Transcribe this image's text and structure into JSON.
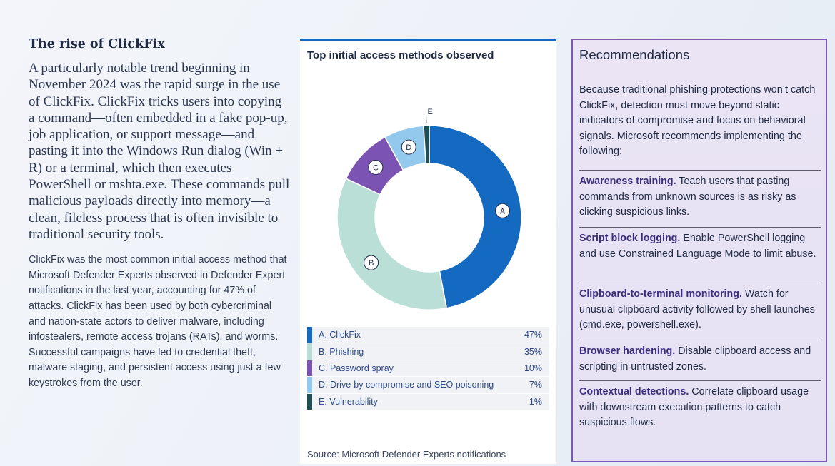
{
  "left": {
    "title": "The rise of ClickFix",
    "lead": "A particularly notable trend beginning in November 2024 was the rapid surge in the use of ClickFix. ClickFix tricks users into copying a command—often embedded in a fake pop-up, job application, or support message—and pasting it into the Windows Run dialog (Win + R) or a terminal, which then executes PowerShell or mshta.exe. These commands pull malicious payloads directly into memory—a clean, fileless process that is often invisible to traditional security tools.",
    "body": "ClickFix was the most common initial access method that Microsoft Defender Experts observed in Defender Expert notifications in the last year, accounting for 47% of attacks. ClickFix has been used by both cybercriminal and nation-state actors to deliver malware, including infostealers, remote access trojans (RATs), and worms. Successful campaigns have led to credential theft, malware staging, and persistent access using just a few keystrokes from the user."
  },
  "chart_data": {
    "type": "pie",
    "title": "Top initial access methods observed",
    "categories": [
      "A",
      "B",
      "C",
      "D",
      "E"
    ],
    "series_labels": [
      "A. ClickFix",
      "B. Phishing",
      "C. Password spray",
      "D. Drive-by compromise and SEO poisoning",
      "E. Vulnerability"
    ],
    "values": [
      47,
      35,
      10,
      7,
      1
    ],
    "value_labels": [
      "47%",
      "35%",
      "10%",
      "7%",
      "1%"
    ],
    "colors": [
      "#1469c0",
      "#b9dfd6",
      "#7b53b2",
      "#93c9ec",
      "#1e4f55"
    ],
    "donut": true,
    "source": "Source: Microsoft Defender Experts notifications"
  },
  "recommendations": {
    "title": "Recommendations",
    "intro": "Because traditional phishing protections won’t catch ClickFix, detection must move beyond static indicators of compromise and focus on behavioral signals. Microsoft recommends implementing the following:",
    "items": [
      {
        "heading": "Awareness training.",
        "text": " Teach users that pasting commands from unknown sources is as risky as clicking suspicious links."
      },
      {
        "heading": "Script block logging.",
        "text": " Enable PowerShell logging and use Constrained Language Mode to limit abuse."
      },
      {
        "heading": "Clipboard-to-terminal monitoring.",
        "text": " Watch for unusual clipboard activity followed by shell launches (cmd.exe, powershell.exe)."
      },
      {
        "heading": "Browser hardening.",
        "text": " Disable clipboard access and scripting in untrusted zones."
      },
      {
        "heading": "Contextual detections.",
        "text": " Correlate clipboard usage with downstream execution patterns to catch suspicious flows."
      }
    ]
  }
}
